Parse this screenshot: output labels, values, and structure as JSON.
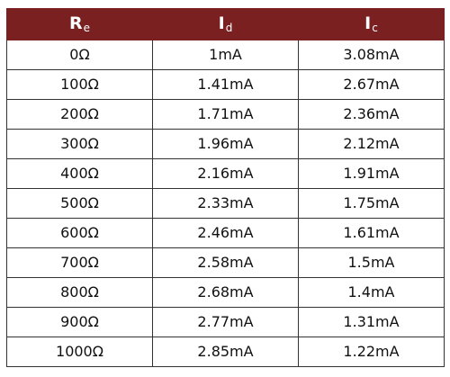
{
  "table": {
    "headers": [
      {
        "symbol": "R",
        "sub": "e"
      },
      {
        "symbol": "I",
        "sub": "d"
      },
      {
        "symbol": "I",
        "sub": "c"
      }
    ],
    "rows": [
      [
        "0Ω",
        "1mA",
        "3.08mA"
      ],
      [
        "100Ω",
        "1.41mA",
        "2.67mA"
      ],
      [
        "200Ω",
        "1.71mA",
        "2.36mA"
      ],
      [
        "300Ω",
        "1.96mA",
        "2.12mA"
      ],
      [
        "400Ω",
        "2.16mA",
        "1.91mA"
      ],
      [
        "500Ω",
        "2.33mA",
        "1.75mA"
      ],
      [
        "600Ω",
        "2.46mA",
        "1.61mA"
      ],
      [
        "700Ω",
        "2.58mA",
        "1.5mA"
      ],
      [
        "800Ω",
        "2.68mA",
        "1.4mA"
      ],
      [
        "900Ω",
        "2.77mA",
        "1.31mA"
      ],
      [
        "1000Ω",
        "2.85mA",
        "1.22mA"
      ]
    ],
    "colors": {
      "header_background": "#7b2020",
      "header_text": "#ffffff",
      "border": "#333333"
    }
  }
}
